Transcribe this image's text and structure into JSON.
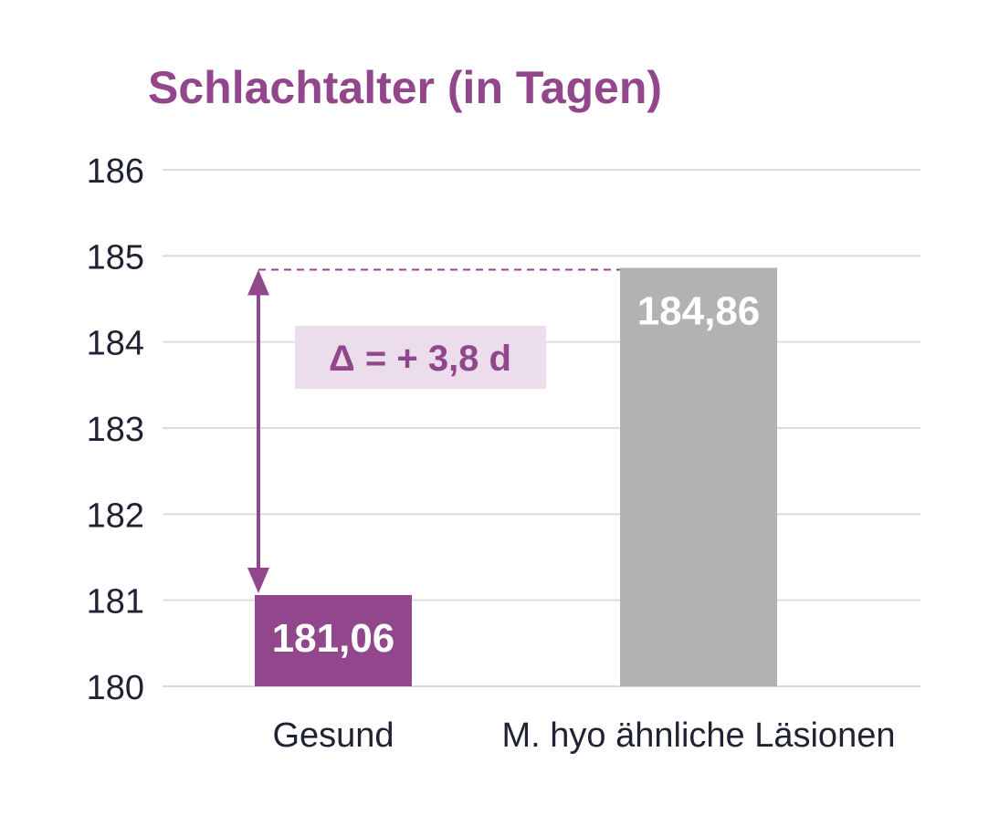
{
  "chart_data": {
    "type": "bar",
    "title": "Schlachtalter (in Tagen)",
    "xlabel": "",
    "ylabel": "",
    "ylim": [
      180,
      186
    ],
    "yticks": [
      180,
      181,
      182,
      183,
      184,
      185,
      186
    ],
    "grid": true,
    "categories": [
      "Gesund",
      "M. hyo ähnliche Läsionen"
    ],
    "values": [
      181.06,
      184.86
    ],
    "value_labels": [
      "181,06",
      "184,86"
    ],
    "colors": [
      "#92478c",
      "#b2b2b2"
    ],
    "annotation": "Δ = + 3,8 d"
  },
  "colors": {
    "title": "#92478c",
    "accent": "#92478c",
    "annotation_box": "#ebddeb",
    "grid": "#dcdcdc"
  }
}
